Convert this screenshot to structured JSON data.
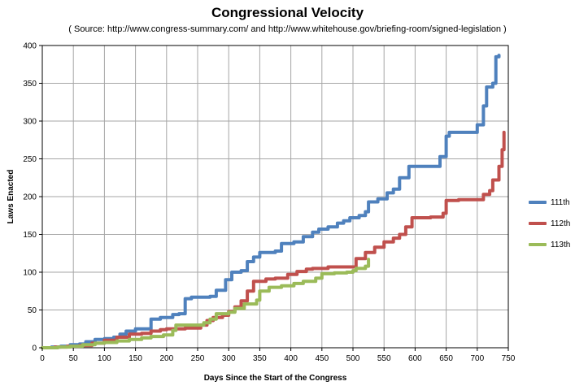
{
  "title": "Congressional Velocity",
  "subtitle": "( Source: http://www.congress-summary.com/ and http://www.whitehouse.gov/briefing-room/signed-legislation )",
  "chart_data": {
    "type": "line",
    "title": "Congressional Velocity",
    "subtitle": "( Source: http://www.congress-summary.com/ and http://www.whitehouse.gov/briefing-room/signed-legislation )",
    "xlabel": "Days Since the Start of the Congress",
    "ylabel": "Laws Enacted",
    "xlim": [
      0,
      750
    ],
    "ylim": [
      0,
      400
    ],
    "xticks": [
      "0",
      "50",
      "100",
      "150",
      "200",
      "250",
      "300",
      "350",
      "400",
      "450",
      "500",
      "550",
      "600",
      "650",
      "700",
      "750"
    ],
    "yticks": [
      "0",
      "50",
      "100",
      "150",
      "200",
      "250",
      "300",
      "350",
      "400"
    ],
    "grid": true,
    "legend_position": "right",
    "series": [
      {
        "name": "111th",
        "color": "#4f81bd",
        "points": [
          [
            0,
            0
          ],
          [
            15,
            1
          ],
          [
            30,
            2
          ],
          [
            45,
            4
          ],
          [
            60,
            5
          ],
          [
            70,
            8
          ],
          [
            85,
            11
          ],
          [
            100,
            12
          ],
          [
            115,
            14
          ],
          [
            125,
            18
          ],
          [
            135,
            22
          ],
          [
            150,
            25
          ],
          [
            165,
            25
          ],
          [
            175,
            38
          ],
          [
            190,
            40
          ],
          [
            200,
            40
          ],
          [
            210,
            44
          ],
          [
            220,
            45
          ],
          [
            230,
            65
          ],
          [
            240,
            67
          ],
          [
            255,
            67
          ],
          [
            270,
            68
          ],
          [
            280,
            76
          ],
          [
            295,
            90
          ],
          [
            305,
            100
          ],
          [
            320,
            102
          ],
          [
            330,
            114
          ],
          [
            340,
            120
          ],
          [
            350,
            126
          ],
          [
            375,
            128
          ],
          [
            385,
            138
          ],
          [
            405,
            140
          ],
          [
            420,
            147
          ],
          [
            435,
            153
          ],
          [
            445,
            157
          ],
          [
            460,
            160
          ],
          [
            475,
            165
          ],
          [
            485,
            168
          ],
          [
            495,
            172
          ],
          [
            510,
            175
          ],
          [
            520,
            180
          ],
          [
            525,
            193
          ],
          [
            540,
            197
          ],
          [
            555,
            205
          ],
          [
            565,
            210
          ],
          [
            575,
            225
          ],
          [
            590,
            240
          ],
          [
            610,
            240
          ],
          [
            635,
            240
          ],
          [
            640,
            253
          ],
          [
            650,
            280
          ],
          [
            655,
            285
          ],
          [
            690,
            285
          ],
          [
            700,
            295
          ],
          [
            710,
            320
          ],
          [
            715,
            345
          ],
          [
            725,
            350
          ],
          [
            730,
            385
          ],
          [
            735,
            387
          ]
        ]
      },
      {
        "name": "112th",
        "color": "#c0504d",
        "points": [
          [
            0,
            0
          ],
          [
            20,
            1
          ],
          [
            40,
            2
          ],
          [
            60,
            3
          ],
          [
            80,
            6
          ],
          [
            100,
            10
          ],
          [
            120,
            14
          ],
          [
            140,
            18
          ],
          [
            160,
            19
          ],
          [
            175,
            22
          ],
          [
            190,
            24
          ],
          [
            200,
            25
          ],
          [
            230,
            26
          ],
          [
            255,
            30
          ],
          [
            265,
            36
          ],
          [
            275,
            40
          ],
          [
            290,
            43
          ],
          [
            300,
            48
          ],
          [
            310,
            54
          ],
          [
            320,
            62
          ],
          [
            330,
            75
          ],
          [
            340,
            88
          ],
          [
            360,
            91
          ],
          [
            375,
            92
          ],
          [
            395,
            97
          ],
          [
            410,
            101
          ],
          [
            425,
            104
          ],
          [
            435,
            105
          ],
          [
            460,
            107
          ],
          [
            495,
            107
          ],
          [
            505,
            118
          ],
          [
            520,
            126
          ],
          [
            535,
            133
          ],
          [
            550,
            140
          ],
          [
            565,
            145
          ],
          [
            575,
            150
          ],
          [
            585,
            160
          ],
          [
            595,
            172
          ],
          [
            625,
            173
          ],
          [
            645,
            178
          ],
          [
            650,
            195
          ],
          [
            670,
            196
          ],
          [
            700,
            196
          ],
          [
            710,
            203
          ],
          [
            720,
            208
          ],
          [
            725,
            222
          ],
          [
            735,
            240
          ],
          [
            740,
            262
          ],
          [
            743,
            285
          ]
        ]
      },
      {
        "name": "113th",
        "color": "#9bbb59",
        "points": [
          [
            0,
            0
          ],
          [
            25,
            1
          ],
          [
            45,
            2
          ],
          [
            65,
            4
          ],
          [
            85,
            6
          ],
          [
            100,
            7
          ],
          [
            120,
            9
          ],
          [
            140,
            11
          ],
          [
            160,
            13
          ],
          [
            175,
            15
          ],
          [
            195,
            17
          ],
          [
            210,
            23
          ],
          [
            215,
            30
          ],
          [
            240,
            30
          ],
          [
            260,
            33
          ],
          [
            270,
            38
          ],
          [
            280,
            45
          ],
          [
            300,
            47
          ],
          [
            310,
            52
          ],
          [
            325,
            58
          ],
          [
            345,
            63
          ],
          [
            350,
            75
          ],
          [
            365,
            80
          ],
          [
            385,
            82
          ],
          [
            405,
            85
          ],
          [
            420,
            88
          ],
          [
            440,
            92
          ],
          [
            450,
            98
          ],
          [
            470,
            99
          ],
          [
            490,
            100
          ],
          [
            500,
            102
          ],
          [
            505,
            105
          ],
          [
            520,
            108
          ],
          [
            525,
            117
          ]
        ]
      }
    ]
  }
}
